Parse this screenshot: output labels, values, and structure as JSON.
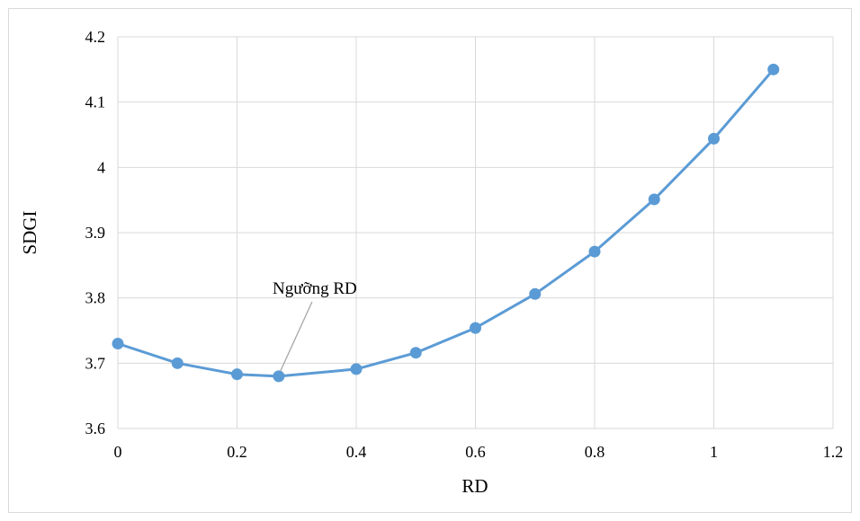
{
  "chart_data": {
    "type": "line",
    "xlabel": "RD",
    "ylabel": "SDGI",
    "xlim": [
      0,
      1.2
    ],
    "ylim": [
      3.6,
      4.2
    ],
    "x_ticks": [
      "0",
      "0.2",
      "0.4",
      "0.6",
      "0.8",
      "1",
      "1.2"
    ],
    "y_ticks": [
      "3.6",
      "3.7",
      "3.8",
      "3.9",
      "4",
      "4.1",
      "4.2"
    ],
    "grid": true,
    "legend": "none",
    "series": [
      {
        "color": "#5b9bd5",
        "x": [
          0,
          0.1,
          0.2,
          0.27,
          0.4,
          0.5,
          0.6,
          0.7,
          0.8,
          0.9,
          1.0,
          1.1
        ],
        "y": [
          3.73,
          3.7,
          3.683,
          3.68,
          3.691,
          3.716,
          3.754,
          3.806,
          3.871,
          3.951,
          4.044,
          4.15
        ]
      }
    ],
    "annotations": [
      {
        "text": "Ngưỡng RD",
        "x": 0.27,
        "y": 3.68
      }
    ]
  }
}
